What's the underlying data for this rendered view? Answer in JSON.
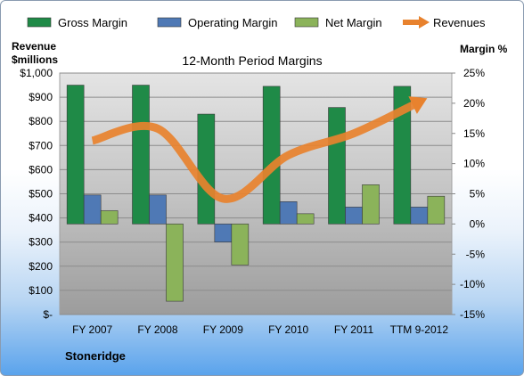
{
  "chart_data": {
    "type": "bar",
    "title": "12-Month Period Margins",
    "categories": [
      "FY 2007",
      "FY 2008",
      "FY 2009",
      "FY 2010",
      "FY 2011",
      "TTM 9-2012"
    ],
    "series": [
      {
        "name": "Gross Margin",
        "kind": "bar",
        "axis": "right",
        "color": "#1f8a47",
        "values": [
          23.0,
          23.0,
          18.2,
          22.8,
          19.3,
          22.8
        ]
      },
      {
        "name": "Operating Margin",
        "kind": "bar",
        "axis": "right",
        "color": "#4f79b5",
        "values": [
          4.8,
          4.8,
          -3.0,
          3.7,
          2.8,
          2.8
        ]
      },
      {
        "name": "Net Margin",
        "kind": "bar",
        "axis": "right",
        "color": "#8bb35a",
        "values": [
          2.2,
          -12.8,
          -6.8,
          1.7,
          6.5,
          4.6
        ]
      },
      {
        "name": "Revenues",
        "kind": "line",
        "axis": "left",
        "color": "#e8822e",
        "values": [
          720,
          770,
          480,
          660,
          750,
          880
        ]
      }
    ],
    "ylabel_left": "Revenue $millions",
    "ylabel_right": "Margin %",
    "ylim_left": [
      0,
      1000
    ],
    "ylim_right": [
      -15,
      25
    ],
    "yticks_left": [
      "$1,000",
      "$900",
      "$800",
      "$700",
      "$600",
      "$500",
      "$400",
      "$300",
      "$200",
      "$100",
      "$-"
    ],
    "yticks_right": [
      "25%",
      "20%",
      "15%",
      "10%",
      "5%",
      "0%",
      "-5%",
      "-10%",
      "-15%"
    ],
    "legend_position": "top",
    "grid": true
  },
  "ylabel_left_line1": "Revenue",
  "ylabel_left_line2": "$millions",
  "company": "Stoneridge"
}
